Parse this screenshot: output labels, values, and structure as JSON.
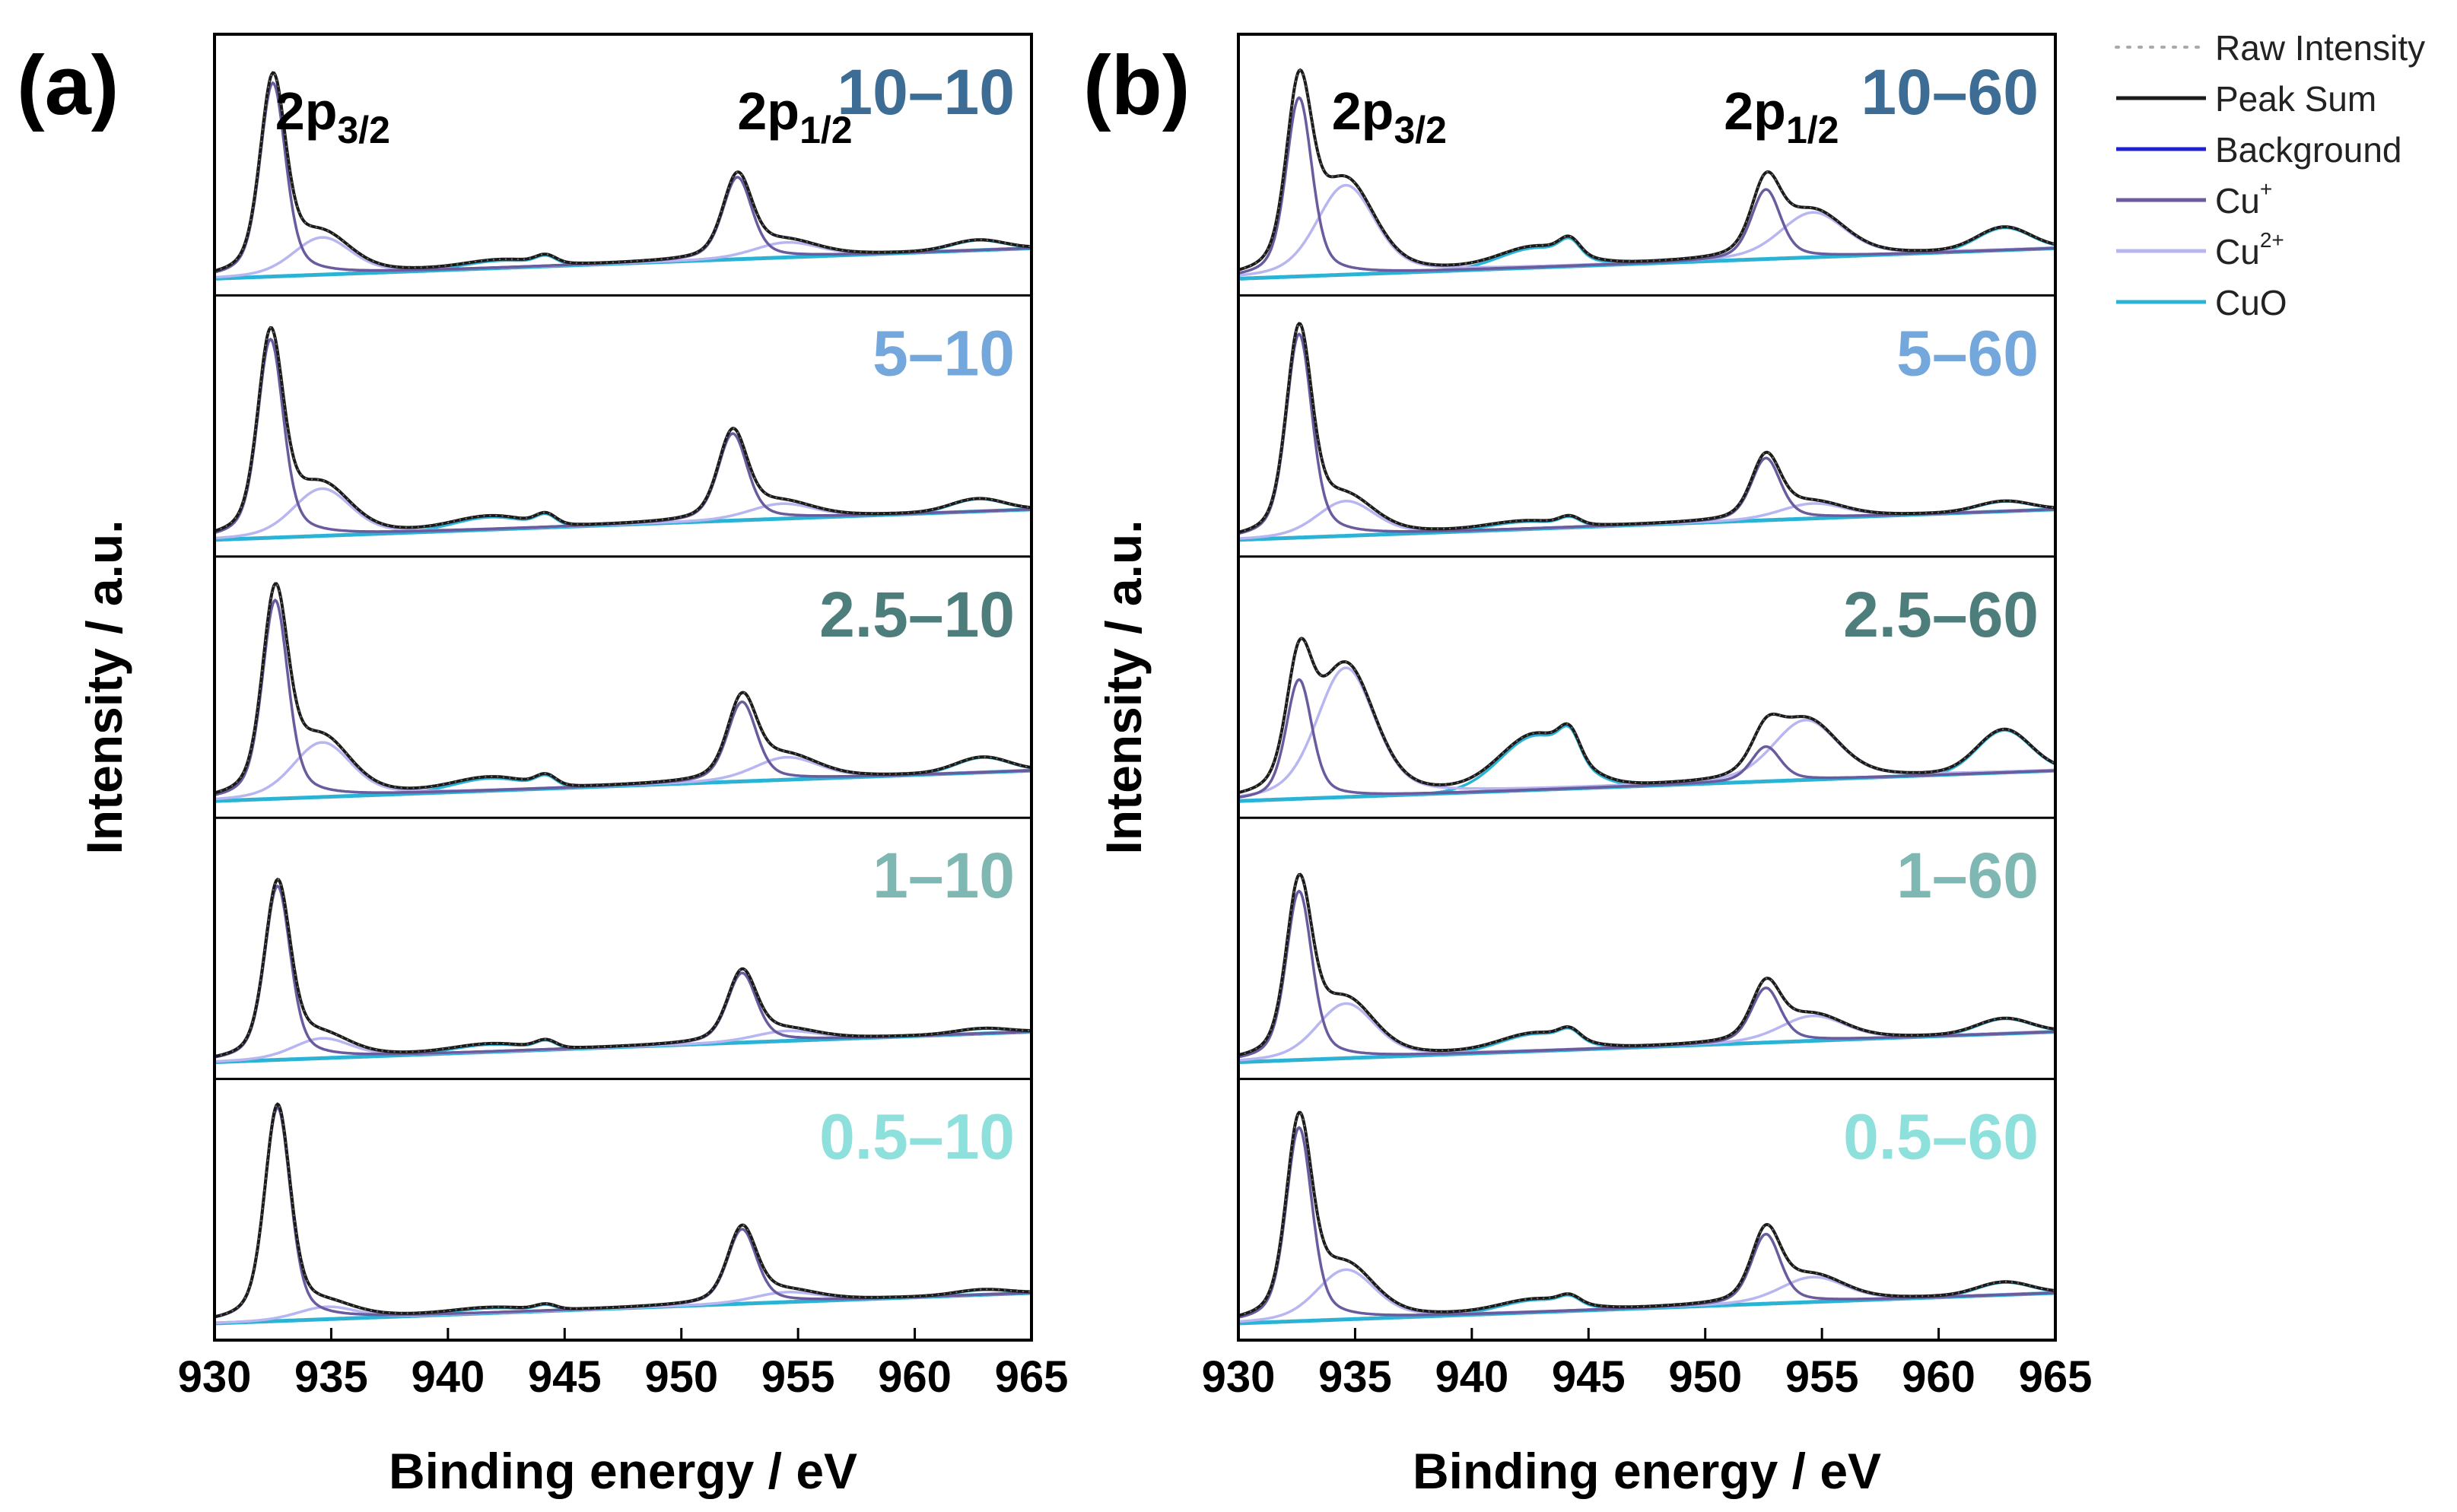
{
  "chart_data": [
    {
      "type": "line",
      "panel_label": "(a)",
      "xlabel": "Binding energy / eV",
      "ylabel": "Intensity / a.u.",
      "xlim": [
        930,
        965
      ],
      "xticks": [
        "930",
        "935",
        "940",
        "945",
        "950",
        "955",
        "960",
        "965"
      ],
      "peak_labels": [
        {
          "base": "2p",
          "sub": "3/2",
          "x": 932.6
        },
        {
          "base": "2p",
          "sub": "1/2",
          "x": 952.4
        }
      ],
      "subpanels": [
        {
          "label": "10–10",
          "label_color": "#3d6d95",
          "cu1": {
            "x": 932.5,
            "h": 0.78
          },
          "cu2": {
            "x": 934.6,
            "h": 0.15
          },
          "cuo": {
            "x": 942.3,
            "h": 0.03
          },
          "cu1b": {
            "x": 952.4,
            "h": 0.33
          },
          "cu2b": {
            "x": 954.5,
            "h": 0.06
          },
          "cuob": {
            "x": 962.7,
            "h": 0.04
          },
          "sat": {
            "x": 944.2,
            "h": 0.03
          }
        },
        {
          "label": "5–10",
          "label_color": "#74a8dc",
          "cu1": {
            "x": 932.4,
            "h": 0.8
          },
          "cu2": {
            "x": 934.6,
            "h": 0.19
          },
          "cuo": {
            "x": 941.8,
            "h": 0.05
          },
          "cu1b": {
            "x": 952.2,
            "h": 0.35
          },
          "cu2b": {
            "x": 954.3,
            "h": 0.06
          },
          "cuob": {
            "x": 962.7,
            "h": 0.05
          },
          "sat": {
            "x": 944.2,
            "h": 0.04
          }
        },
        {
          "label": "2.5–10",
          "label_color": "#4e7e7b",
          "cu1": {
            "x": 932.6,
            "h": 0.8
          },
          "cu2": {
            "x": 934.6,
            "h": 0.22
          },
          "cuo": {
            "x": 941.8,
            "h": 0.05
          },
          "cu1b": {
            "x": 952.6,
            "h": 0.32
          },
          "cu2b": {
            "x": 954.5,
            "h": 0.09
          },
          "cuob": {
            "x": 962.9,
            "h": 0.06
          },
          "sat": {
            "x": 944.2,
            "h": 0.04
          }
        },
        {
          "label": "1–10",
          "label_color": "#7fb8b3",
          "cu1": {
            "x": 932.7,
            "h": 0.7
          },
          "cu2": {
            "x": 934.6,
            "h": 0.08
          },
          "cuo": {
            "x": 941.8,
            "h": 0.03
          },
          "cu1b": {
            "x": 952.6,
            "h": 0.28
          },
          "cu2b": {
            "x": 954.5,
            "h": 0.04
          },
          "cuob": {
            "x": 962.9,
            "h": 0.02
          },
          "sat": {
            "x": 944.2,
            "h": 0.03
          }
        },
        {
          "label": "0.5–10",
          "label_color": "#8ee0dc",
          "cu1": {
            "x": 932.7,
            "h": 0.86
          },
          "cu2": {
            "x": 934.8,
            "h": 0.05
          },
          "cuo": {
            "x": 941.8,
            "h": 0.02
          },
          "cu1b": {
            "x": 952.6,
            "h": 0.3
          },
          "cu2b": {
            "x": 954.5,
            "h": 0.04
          },
          "cuob": {
            "x": 962.9,
            "h": 0.02
          },
          "sat": {
            "x": 944.2,
            "h": 0.02
          }
        }
      ]
    },
    {
      "type": "line",
      "panel_label": "(b)",
      "xlabel": "Binding energy / eV",
      "ylabel": "Intensity / a.u.",
      "xlim": [
        930,
        965
      ],
      "xticks": [
        "930",
        "935",
        "940",
        "945",
        "950",
        "955",
        "960",
        "965"
      ],
      "peak_labels": [
        {
          "base": "2p",
          "sub": "3/2",
          "x": 934.0
        },
        {
          "base": "2p",
          "sub": "1/2",
          "x": 950.8
        }
      ],
      "subpanels": [
        {
          "label": "10–60",
          "label_color": "#3d6d95",
          "cu1": {
            "x": 932.6,
            "h": 0.72
          },
          "cu2": {
            "x": 934.6,
            "h": 0.36
          },
          "cuo": {
            "x": 942.8,
            "h": 0.08
          },
          "cu1b": {
            "x": 952.6,
            "h": 0.28
          },
          "cu2b": {
            "x": 954.6,
            "h": 0.18
          },
          "cuob": {
            "x": 962.8,
            "h": 0.09
          },
          "sat": {
            "x": 944.2,
            "h": 0.06
          }
        },
        {
          "label": "5–60",
          "label_color": "#74a8dc",
          "cu1": {
            "x": 932.6,
            "h": 0.82
          },
          "cu2": {
            "x": 934.6,
            "h": 0.14
          },
          "cuo": {
            "x": 942.3,
            "h": 0.03
          },
          "cu1b": {
            "x": 952.6,
            "h": 0.25
          },
          "cu2b": {
            "x": 954.6,
            "h": 0.06
          },
          "cuob": {
            "x": 962.8,
            "h": 0.04
          },
          "sat": {
            "x": 944.2,
            "h": 0.03
          }
        },
        {
          "label": "2.5–60",
          "label_color": "#4e7e7b",
          "cu1": {
            "x": 932.6,
            "h": 0.48
          },
          "cu2": {
            "x": 934.6,
            "h": 0.52
          },
          "cuo": {
            "x": 942.8,
            "h": 0.22
          },
          "cu1b": {
            "x": 952.6,
            "h": 0.14
          },
          "cu2b": {
            "x": 954.3,
            "h": 0.24
          },
          "cuob": {
            "x": 962.8,
            "h": 0.17
          },
          "sat": {
            "x": 944.2,
            "h": 0.1
          }
        },
        {
          "label": "1–60",
          "label_color": "#7fb8b3",
          "cu1": {
            "x": 932.6,
            "h": 0.68
          },
          "cu2": {
            "x": 934.6,
            "h": 0.22
          },
          "cuo": {
            "x": 942.8,
            "h": 0.07
          },
          "cu1b": {
            "x": 952.6,
            "h": 0.22
          },
          "cu2b": {
            "x": 954.6,
            "h": 0.1
          },
          "cuob": {
            "x": 962.8,
            "h": 0.06
          },
          "sat": {
            "x": 944.2,
            "h": 0.04
          }
        },
        {
          "label": "0.5–60",
          "label_color": "#8ee0dc",
          "cu1": {
            "x": 932.6,
            "h": 0.78
          },
          "cu2": {
            "x": 934.6,
            "h": 0.2
          },
          "cuo": {
            "x": 942.8,
            "h": 0.05
          },
          "cu1b": {
            "x": 952.6,
            "h": 0.28
          },
          "cu2b": {
            "x": 954.6,
            "h": 0.1
          },
          "cuob": {
            "x": 962.8,
            "h": 0.05
          },
          "sat": {
            "x": 944.2,
            "h": 0.03
          }
        }
      ]
    }
  ],
  "legend": {
    "placement": "top-right",
    "entries": [
      {
        "label": "Raw Intensity",
        "color": "#aaaaaa",
        "style": "dotted"
      },
      {
        "label": "Peak Sum",
        "color": "#1a1a1a",
        "style": "solid"
      },
      {
        "label": "Background",
        "color": "#1f1fd6",
        "style": "solid"
      },
      {
        "label": "Cu",
        "sup": "+",
        "color": "#6a5a9e",
        "style": "solid"
      },
      {
        "label": "Cu",
        "sup": "2+",
        "color": "#b8b6f0",
        "style": "solid"
      },
      {
        "label": "CuO",
        "color": "#2bb3d6",
        "style": "solid"
      }
    ]
  }
}
